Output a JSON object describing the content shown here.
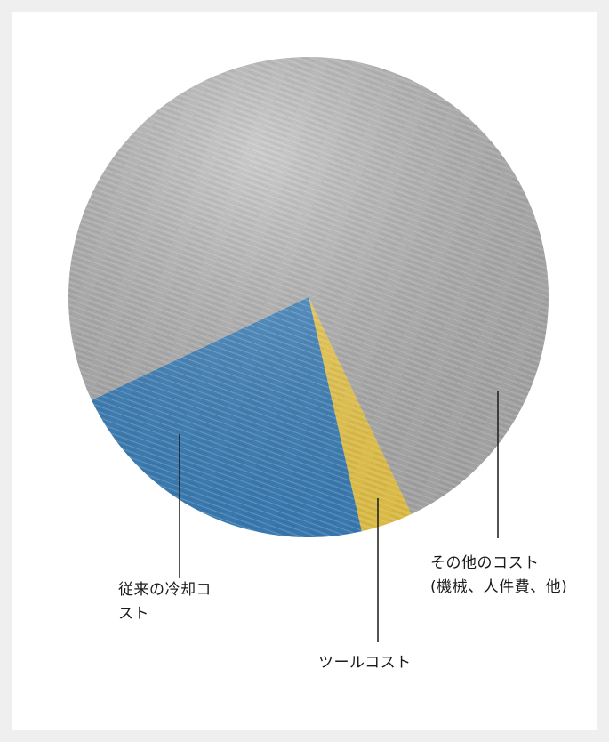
{
  "chart_data": {
    "type": "pie",
    "categories": [
      "ツールコスト",
      "従来の冷却コ\nスト",
      "その他のコスト\n(機械、人件費、他)"
    ],
    "values": [
      3.5,
      21.5,
      75
    ],
    "colors": [
      "#f5d04a",
      "#3b84c2",
      "#b3b3b3"
    ]
  }
}
